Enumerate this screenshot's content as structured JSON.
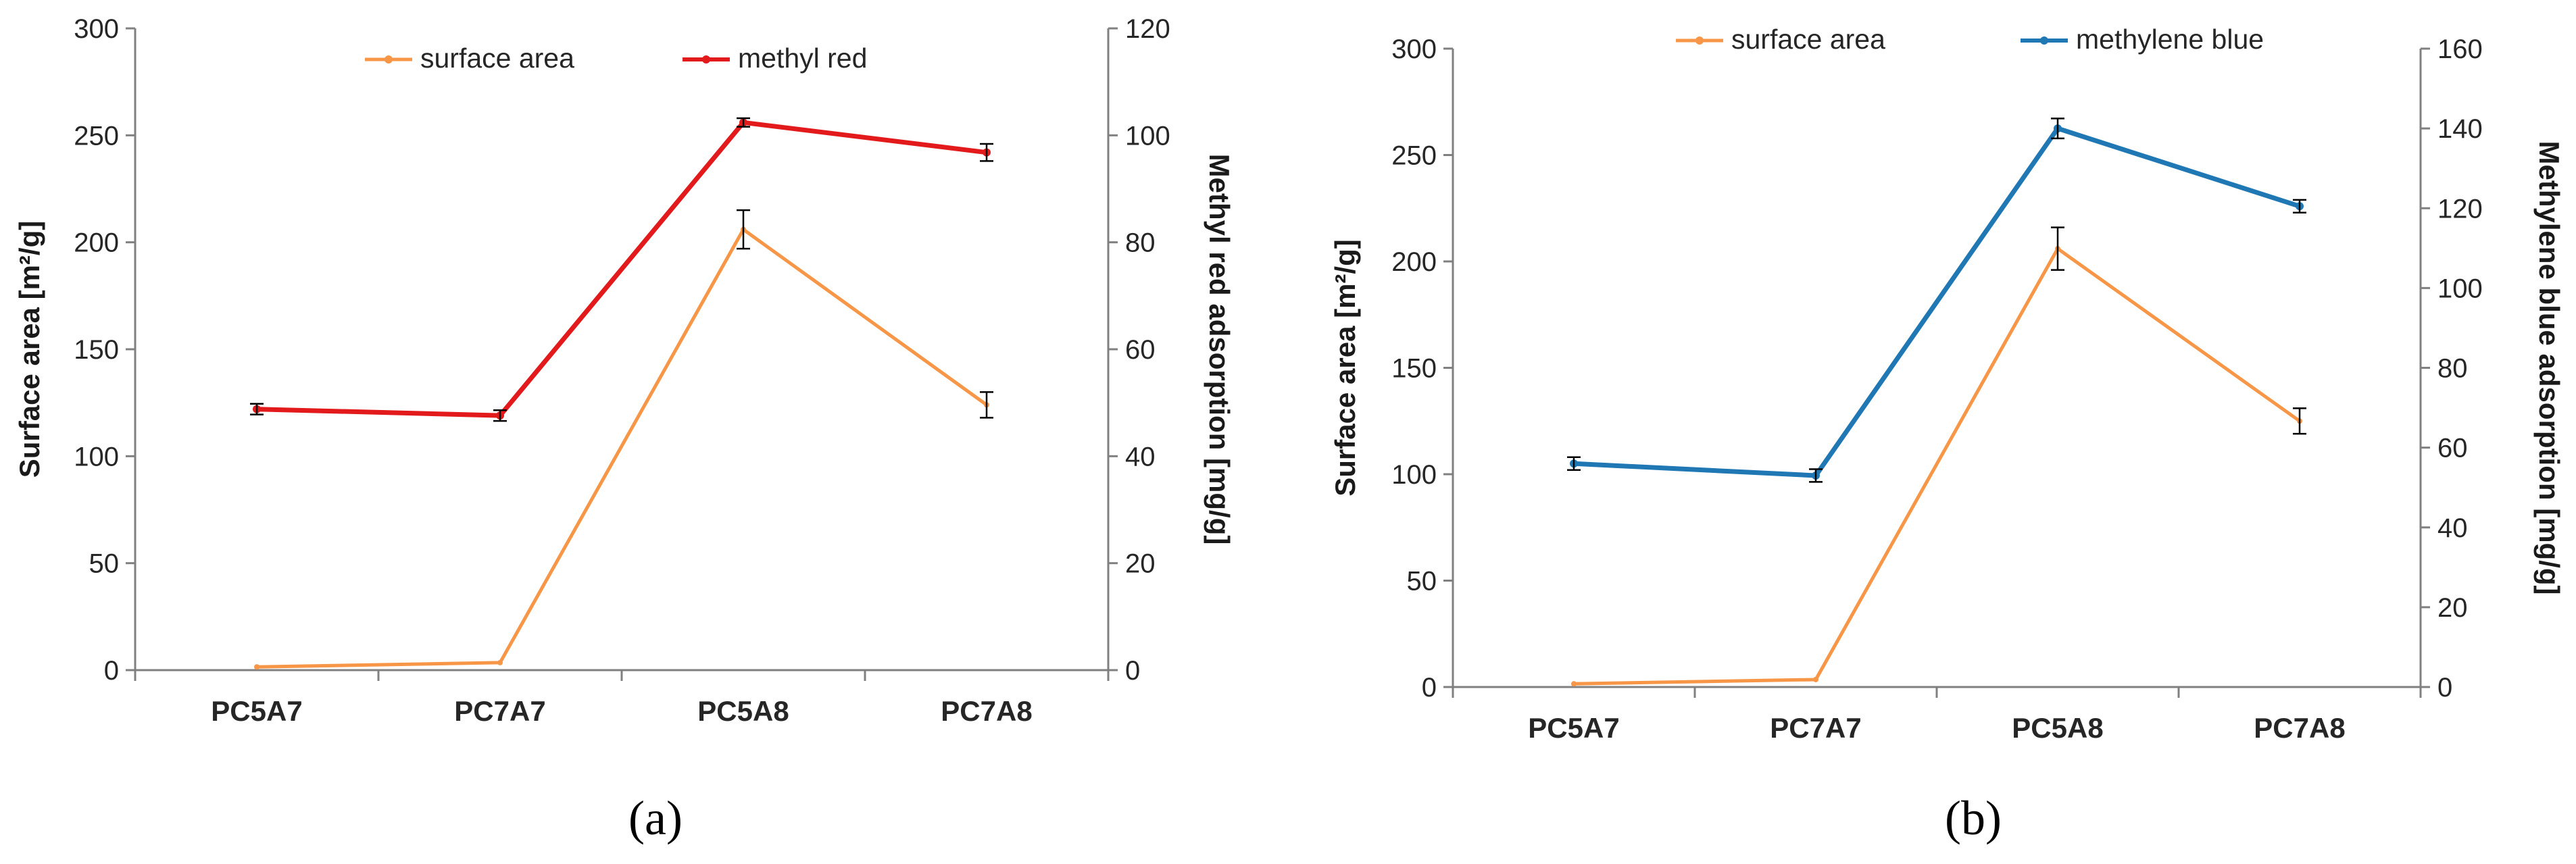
{
  "chart_data": [
    {
      "type": "line",
      "panel_label": "(a)",
      "categories": [
        "PC5A7",
        "PC7A7",
        "PC5A8",
        "PC7A8"
      ],
      "y_left": {
        "label": "Surface area [m²/g]",
        "ylim": [
          0,
          300
        ],
        "ticks": [
          0,
          50,
          100,
          150,
          200,
          250,
          300
        ]
      },
      "y_right": {
        "label": "Methyl red adsorption [mg/g]",
        "ylim": [
          0,
          120
        ],
        "ticks": [
          0,
          20,
          40,
          60,
          80,
          100,
          120
        ]
      },
      "legend_position": "top-center",
      "grid": false,
      "series": [
        {
          "name": "surface area",
          "axis": "left",
          "color": "#F79646",
          "values": [
            1.5,
            3.5,
            206,
            124
          ],
          "errors": [
            0,
            0,
            9,
            6
          ]
        },
        {
          "name": "methyl red",
          "axis": "right",
          "color": "#E31A1C",
          "values": [
            48.8,
            47.6,
            102.4,
            96.8
          ],
          "errors": [
            1.0,
            1.0,
            0.8,
            1.6
          ]
        }
      ]
    },
    {
      "type": "line",
      "panel_label": "(b)",
      "categories": [
        "PC5A7",
        "PC7A7",
        "PC5A8",
        "PC7A8"
      ],
      "y_left": {
        "label": "Surface area [m²/g]",
        "ylim": [
          0,
          300
        ],
        "ticks": [
          0,
          50,
          100,
          150,
          200,
          250,
          300
        ]
      },
      "y_right": {
        "label": "Methylene blue adsorption [mg/g]",
        "ylim": [
          0,
          160
        ],
        "ticks": [
          0,
          20,
          40,
          60,
          80,
          100,
          120,
          140,
          160
        ]
      },
      "legend_position": "top-center",
      "grid": false,
      "series": [
        {
          "name": "surface area",
          "axis": "left",
          "color": "#F79646",
          "values": [
            1.5,
            3.5,
            206,
            125
          ],
          "errors": [
            0,
            0,
            10,
            6
          ]
        },
        {
          "name": "methylene blue",
          "axis": "right",
          "color": "#1F77B4",
          "values": [
            56,
            53,
            140,
            120.5
          ],
          "errors": [
            1.6,
            1.6,
            2.5,
            1.6
          ]
        }
      ]
    }
  ]
}
